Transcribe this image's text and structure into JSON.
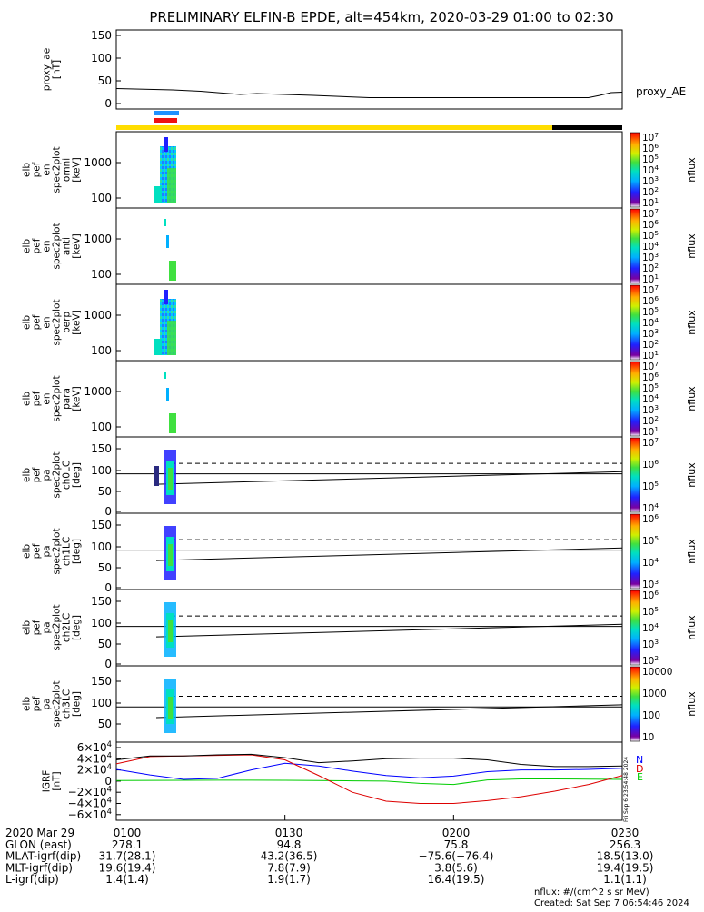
{
  "title": "PRELIMINARY ELFIN-B EPDE, alt=454km, 2020-03-29 01:00 to 02:30",
  "panels": [
    {
      "id": "proxy_ae",
      "ylabel": [
        "proxy_ae",
        "[nT]"
      ],
      "ticks": [
        "150",
        "100",
        "50",
        "0"
      ],
      "side_label": "proxy_AE"
    },
    {
      "id": "omni",
      "ylabel": [
        "elb",
        "pef",
        "en",
        "spec2plot",
        "omni",
        "[keV]"
      ],
      "ticks": [
        "1000",
        "100"
      ],
      "cb_ticks": [
        "10^7",
        "10^6",
        "10^5",
        "10^4",
        "10^3",
        "10^2",
        "10^1"
      ],
      "cb_label": "nflux"
    },
    {
      "id": "anti",
      "ylabel": [
        "elb",
        "pef",
        "en",
        "spec2plot",
        "anti",
        "[keV]"
      ],
      "ticks": [
        "1000",
        "100"
      ],
      "cb_ticks": [
        "10^7",
        "10^6",
        "10^5",
        "10^4",
        "10^3",
        "10^2",
        "10^1"
      ],
      "cb_label": "nflux"
    },
    {
      "id": "perp",
      "ylabel": [
        "elb",
        "pef",
        "en",
        "spec2plot",
        "perp",
        "[keV]"
      ],
      "ticks": [
        "1000",
        "100"
      ],
      "cb_ticks": [
        "10^7",
        "10^6",
        "10^5",
        "10^4",
        "10^3",
        "10^2",
        "10^1"
      ],
      "cb_label": "nflux"
    },
    {
      "id": "para",
      "ylabel": [
        "elb",
        "pef",
        "en",
        "spec2plot",
        "para",
        "[keV]"
      ],
      "ticks": [
        "1000",
        "100"
      ],
      "cb_ticks": [
        "10^7",
        "10^6",
        "10^5",
        "10^4",
        "10^3",
        "10^2",
        "10^1"
      ],
      "cb_label": "nflux"
    },
    {
      "id": "ch0LC",
      "ylabel": [
        "elb",
        "pef",
        "pa",
        "spec2plot",
        "ch0LC",
        "[deg]"
      ],
      "ticks": [
        "150",
        "100",
        "50",
        "0"
      ],
      "cb_ticks": [
        "10^7",
        "10^6",
        "10^5",
        "10^4"
      ],
      "cb_label": "nflux"
    },
    {
      "id": "ch1LC",
      "ylabel": [
        "elb",
        "pef",
        "pa",
        "spec2plot",
        "ch1LC",
        "[deg]"
      ],
      "ticks": [
        "150",
        "100",
        "50",
        "0"
      ],
      "cb_ticks": [
        "10^6",
        "10^5",
        "10^4",
        "10^3"
      ],
      "cb_label": "nflux"
    },
    {
      "id": "ch2LC",
      "ylabel": [
        "elb",
        "pef",
        "pa",
        "spec2plot",
        "ch2LC",
        "[deg]"
      ],
      "ticks": [
        "150",
        "100",
        "50",
        "0"
      ],
      "cb_ticks": [
        "10^6",
        "10^5",
        "10^4",
        "10^3",
        "10^2"
      ],
      "cb_label": "nflux"
    },
    {
      "id": "ch3LC",
      "ylabel": [
        "elb",
        "pef",
        "pa",
        "spec2plot",
        "ch3LC",
        "[deg]"
      ],
      "ticks": [
        "150",
        "100",
        "50"
      ],
      "cb_ticks": [
        "10000",
        "1000",
        "100",
        "10"
      ],
      "cb_label": "nflux"
    },
    {
      "id": "igrf",
      "ylabel": [
        "IGRF",
        "[nT]"
      ],
      "ticks": [
        "6×10^4",
        "4×10^4",
        "2×10^4",
        "0",
        "−2×10^4",
        "−4×10^4",
        "−6×10^4"
      ],
      "legend": [
        "N",
        "E",
        "D"
      ]
    }
  ],
  "time_axis": {
    "rows": [
      {
        "label": "2020 Mar 29",
        "values": [
          "0100",
          "0130",
          "0200",
          "0230"
        ]
      },
      {
        "label": "GLON (east)",
        "values": [
          "278.1",
          "94.8",
          "75.8",
          "256.3"
        ]
      },
      {
        "label": "MLAT-igrf(dip)",
        "values": [
          "31.7(28.1)",
          "43.2(36.5)",
          "−75.6(−76.4)",
          "18.5(13.0)"
        ]
      },
      {
        "label": "MLT-igrf(dip)",
        "values": [
          "19.6(19.4)",
          "7.8(7.9)",
          "3.8(5.6)",
          "19.4(19.5)"
        ]
      },
      {
        "label": "L-igrf(dip)",
        "values": [
          "1.4(1.4)",
          "1.9(1.7)",
          "16.4(19.5)",
          "1.1(1.1)"
        ]
      }
    ]
  },
  "footer": {
    "units": "nflux: #/(cm^2 s sr MeV)",
    "created": "Created: Sat Sep  7 06:54:46 2024",
    "stamp": "Fri Sep  6 23:54:48 2024"
  },
  "colors": {
    "n_series": "#0000ff",
    "e_series": "#00cc00",
    "d_series": "#dd0000",
    "total": "#000000",
    "yellow_bar": "#ffdd00",
    "blue_marker": "#1e90ff",
    "red_marker": "#ee1111"
  },
  "chart_data": {
    "type": "line",
    "title": "PRELIMINARY ELFIN-B EPDE, alt=454km, 2020-03-29 01:00 to 02:30",
    "x_range": [
      "01:00",
      "02:30"
    ],
    "proxy_ae": {
      "ylim": [
        0,
        150
      ],
      "x_min": [
        0,
        10,
        15,
        22,
        25,
        35,
        45,
        55,
        65,
        75,
        84,
        86,
        88,
        90
      ],
      "values": [
        33,
        30,
        27,
        20,
        22,
        18,
        13,
        13,
        13,
        13,
        13,
        18,
        24,
        25
      ]
    },
    "igrf": {
      "ylim": [
        -60000,
        60000
      ],
      "x_min": [
        0,
        6,
        12,
        18,
        24,
        30,
        36,
        42,
        48,
        54,
        60,
        66,
        72,
        78,
        84,
        90
      ],
      "series": [
        {
          "name": "N",
          "values": [
            21000,
            11000,
            3000,
            5000,
            20000,
            32000,
            27000,
            18000,
            10000,
            6000,
            9000,
            17000,
            20000,
            20000,
            21000,
            23000
          ]
        },
        {
          "name": "E",
          "values": [
            1000,
            1200,
            1400,
            1600,
            1700,
            1500,
            1000,
            500,
            0,
            -4000,
            -6000,
            2000,
            4000,
            4000,
            3500,
            3000
          ]
        },
        {
          "name": "D",
          "values": [
            31000,
            44000,
            45000,
            46000,
            47000,
            38000,
            10000,
            -20000,
            -36000,
            -40000,
            -40000,
            -35000,
            -28000,
            -18000,
            -6000,
            10000
          ]
        },
        {
          "name": "total",
          "values": [
            38000,
            45000,
            45000,
            47000,
            48000,
            42000,
            33000,
            36000,
            40000,
            41000,
            41000,
            38000,
            30000,
            26000,
            26000,
            27000
          ]
        }
      ]
    },
    "pa_lines": {
      "dashed_value": 115,
      "solid_value": 90,
      "loss_cone_start": 65,
      "loss_cone_end": 95
    }
  }
}
